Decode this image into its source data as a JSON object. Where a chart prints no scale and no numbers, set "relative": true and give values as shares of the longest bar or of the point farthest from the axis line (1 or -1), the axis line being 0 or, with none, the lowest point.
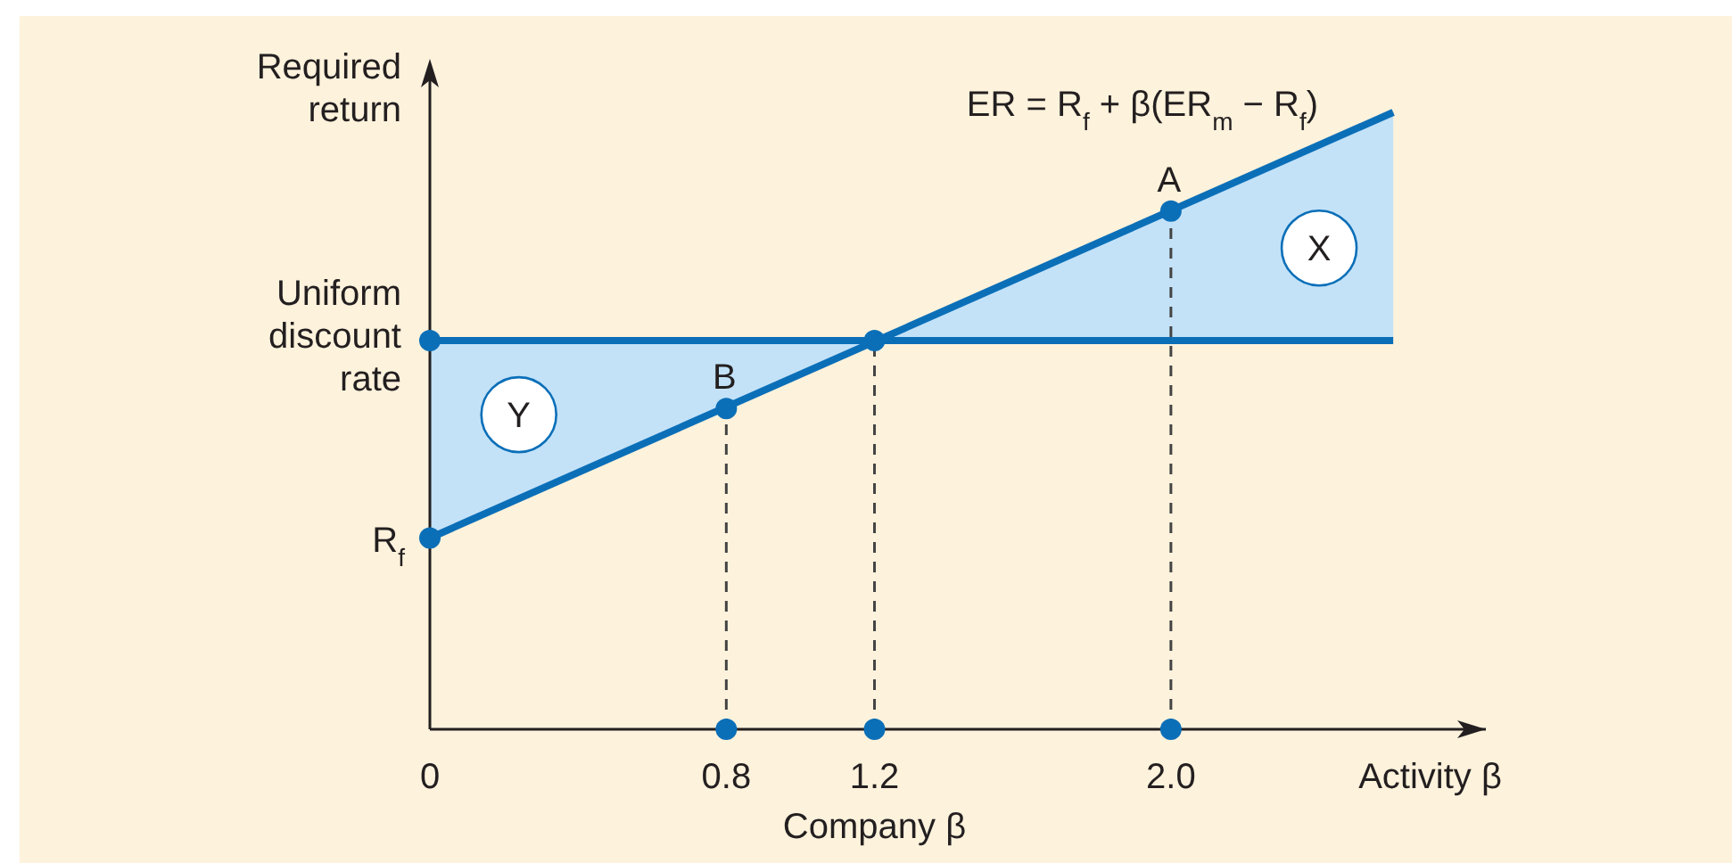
{
  "chart_data": {
    "type": "line",
    "relative": true,
    "xlabel": "Activity β",
    "ylabel": "Required return",
    "xlim": [
      0,
      2.85
    ],
    "xticks": [
      0,
      0.8,
      1.2,
      {
        "value": 2.0,
        "label": "2.0"
      }
    ],
    "series": [
      {
        "name": "ER = R$_{f}$ + β(ER$_{m}$ − R$_{f}$)",
        "color": "#0b6fb8",
        "x": [
          0,
          2.6
        ],
        "values": [
          0.31,
          1.0
        ]
      },
      {
        "name": "Uniform discount rate",
        "color": "#0b6fb8",
        "x": [
          0,
          1.2,
          2.6
        ],
        "values": [
          0.63,
          0.63,
          0.63
        ],
        "lower": [
          0.31,
          0.63,
          0.63
        ],
        "upper": [
          0.63,
          0.63,
          1.0
        ]
      },
      {
        "type": "line",
        "color": "#444444",
        "line_style": "dashed",
        "x": [
          0.8,
          0.8
        ],
        "values": [
          0,
          0.52
        ]
      },
      {
        "type": "line",
        "color": "#444444",
        "line_style": "dashed",
        "x": [
          1.2,
          1.2
        ],
        "values": [
          0,
          0.63
        ]
      },
      {
        "type": "line",
        "color": "#444444",
        "line_style": "dashed",
        "x": [
          2.0,
          2.0
        ],
        "values": [
          0,
          0.84
        ]
      },
      {
        "type": "scatter",
        "color": "#0b6fb8",
        "marker": "circle",
        "x": [
          0,
          0,
          0.8,
          1.2,
          2.0,
          0.8,
          1.2,
          2.0
        ],
        "values": [
          0.31,
          0.63,
          0.52,
          0.63,
          0.84,
          0,
          0,
          0
        ]
      }
    ],
    "annotations": [
      {
        "text": "R$_{f}$",
        "x": 0,
        "y": 0.31
      },
      {
        "text": "B",
        "x": 0.8,
        "y": 0.52
      },
      {
        "text": "A",
        "x": 2.0,
        "y": 0.84
      },
      {
        "text": "Y",
        "x": 0.24,
        "y": 0.51
      },
      {
        "text": "X",
        "x": 2.4,
        "y": 0.78
      },
      {
        "text": "Company β",
        "x": 1.2,
        "y": 0
      }
    ]
  }
}
